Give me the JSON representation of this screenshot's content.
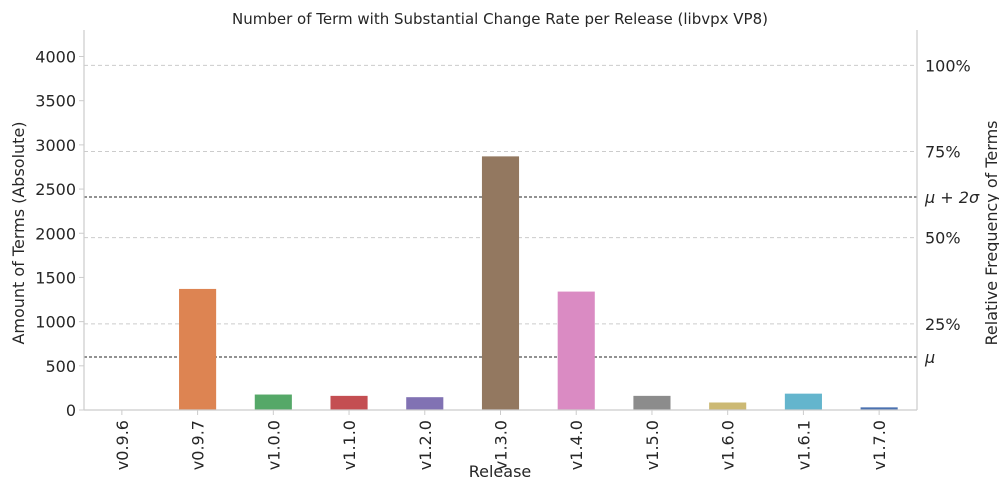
{
  "chart_data": {
    "type": "bar",
    "title": "Number of Term with Substantial Change Rate per Release (libvpx VP8)",
    "xlabel": "Release",
    "ylabel": "Amount of Terms (Absolute)",
    "y2label": "Relative Frequency of Terms",
    "categories": [
      "v0.9.6",
      "v0.9.7",
      "v1.0.0",
      "v1.1.0",
      "v1.2.0",
      "v1.3.0",
      "v1.4.0",
      "v1.5.0",
      "v1.6.0",
      "v1.6.1",
      "v1.7.0"
    ],
    "values": [
      0,
      1370,
      175,
      160,
      145,
      2870,
      1340,
      160,
      85,
      185,
      30
    ],
    "colors": [
      "#4c72b0",
      "#dd8452",
      "#55a868",
      "#c44e52",
      "#8172b3",
      "#937860",
      "#da8bc3",
      "#8c8c8c",
      "#ccb974",
      "#64b5cd",
      "#4c72b0"
    ],
    "ylim": [
      0,
      4300
    ],
    "yticks": [
      "0",
      "500",
      "1000",
      "1500",
      "2000",
      "2500",
      "3000",
      "3500",
      "4000"
    ],
    "ytick_values": [
      0,
      500,
      1000,
      1500,
      2000,
      2500,
      3000,
      3500,
      4000
    ],
    "y2ticks": [
      {
        "label": "25%",
        "value": 0.25
      },
      {
        "label": "50%",
        "value": 0.5
      },
      {
        "label": "75%",
        "value": 0.75
      },
      {
        "label": "100%",
        "value": 1.0
      }
    ],
    "y2_full_scale": 3900,
    "reference_lines": [
      {
        "label": "μ",
        "value": 600
      },
      {
        "label": "μ + 2σ",
        "value": 2410
      }
    ],
    "grid": "horizontal dashed, right axis ticks"
  }
}
